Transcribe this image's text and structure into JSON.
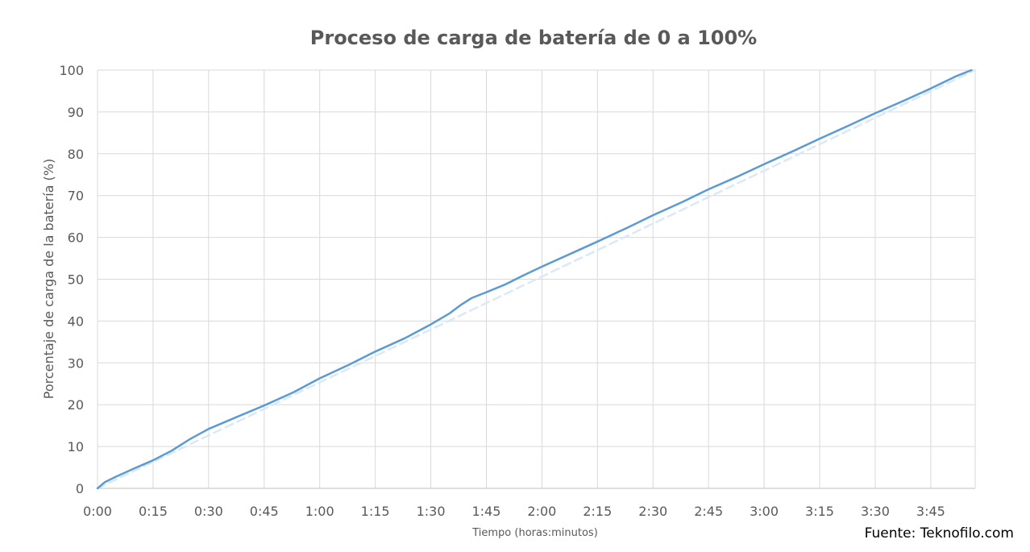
{
  "chart_data": {
    "type": "line",
    "title": "Proceso de carga de batería de 0 a 100%",
    "xlabel": "Tiempo (horas:minutos)",
    "ylabel": "Porcentaje de carga de la batería (%)",
    "x_ticks": [
      "0:00",
      "0:15",
      "0:30",
      "0:45",
      "1:00",
      "1:15",
      "1:30",
      "1:45",
      "2:00",
      "2:15",
      "2:30",
      "2:45",
      "3:00",
      "3:15",
      "3:30",
      "3:45"
    ],
    "y_ticks": [
      "0",
      "10",
      "20",
      "30",
      "40",
      "50",
      "60",
      "70",
      "80",
      "90",
      "100"
    ],
    "xlim_minutes": [
      0,
      237
    ],
    "ylim": [
      0,
      100
    ],
    "grid": true,
    "series": [
      {
        "style": "solid",
        "color": "#5b9bd5",
        "x_minutes": [
          0,
          2,
          5,
          10,
          15,
          20,
          25,
          30,
          38,
          45,
          53,
          60,
          68,
          75,
          83,
          90,
          95,
          98,
          101,
          105,
          110,
          115,
          120,
          128,
          135,
          143,
          150,
          158,
          165,
          173,
          180,
          188,
          195,
          203,
          210,
          218,
          225,
          232,
          236
        ],
        "y": [
          0,
          1.5,
          2.8,
          4.8,
          6.7,
          9.0,
          11.8,
          14.2,
          17.2,
          19.8,
          23.0,
          26.3,
          29.6,
          32.7,
          35.9,
          39.2,
          41.8,
          43.8,
          45.5,
          46.9,
          48.7,
          50.9,
          53.0,
          56.2,
          59.0,
          62.3,
          65.3,
          68.5,
          71.5,
          74.6,
          77.5,
          80.7,
          83.6,
          86.8,
          89.7,
          92.8,
          95.6,
          98.6,
          100
        ]
      },
      {
        "style": "dashed",
        "color": "#dbe8f6",
        "x_minutes": [
          0,
          237
        ],
        "y": [
          0,
          100
        ]
      }
    ]
  },
  "source_note": "Fuente: Teknofilo.com"
}
